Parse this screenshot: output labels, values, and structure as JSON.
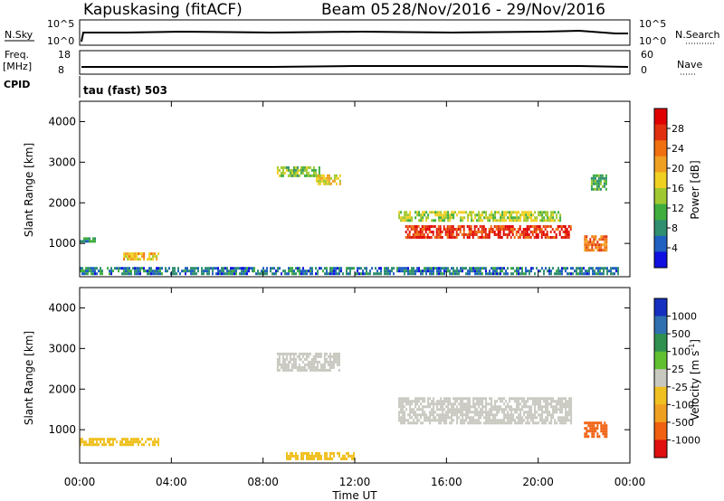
{
  "header": {
    "station": "Kapuskasing (fitACF)",
    "beam": "Beam 05",
    "dates": "28/Nov/2016 - 29/Nov/2016",
    "program": "tau (fast) 503"
  },
  "mini_panels": {
    "nsky": {
      "left_label": "N.Sky",
      "right_label": "N.Search",
      "left_top": "10^5",
      "left_bottom": "10^0",
      "right_top": "10^5",
      "right_bottom": "10^0"
    },
    "freq": {
      "left_label_line1": "Freq.",
      "left_label_line2": "[MHz]",
      "left_top": "18",
      "left_bottom": "8",
      "right_label": "Nave",
      "right_top": "60",
      "right_bottom": "0"
    },
    "cpid_label": "CPID"
  },
  "axes": {
    "ylabel": "Slant Range [km]",
    "xlabel": "Time UT",
    "y_ticks": [
      "4000",
      "3000",
      "2000",
      "1000"
    ],
    "x_ticks": [
      "00:00",
      "04:00",
      "08:00",
      "12:00",
      "16:00",
      "20:00",
      "00:00"
    ]
  },
  "colorbars": {
    "power": {
      "label": "Power [dB]",
      "ticks": [
        "28",
        "24",
        "20",
        "16",
        "12",
        "8",
        "4"
      ],
      "colors": [
        "#1010e0",
        "#2060c0",
        "#2f8f70",
        "#3fae3f",
        "#a0c830",
        "#f0d020",
        "#f0a020",
        "#f07010",
        "#e03010",
        "#e00000"
      ]
    },
    "velocity": {
      "label": "Velocity [m s^-1]",
      "ticks": [
        "1000",
        "500",
        "100",
        "25",
        "-25",
        "-100",
        "-500",
        "-1000"
      ],
      "colors": [
        "#1530c0",
        "#3070b0",
        "#2f9050",
        "#60c030",
        "#c8c8c0",
        "#f0c020",
        "#f0a020",
        "#f06010",
        "#e01010"
      ]
    }
  },
  "chart_data": {
    "type": "heatmap",
    "x_range_hours": [
      0,
      24
    ],
    "y_range_km": [
      180,
      4500
    ],
    "power_regions": [
      {
        "t": [
          0.0,
          0.7
        ],
        "r": [
          1000,
          1150
        ],
        "dB": 8
      },
      {
        "t": [
          1.9,
          3.5
        ],
        "r": [
          560,
          780
        ],
        "dB": 18
      },
      {
        "t": [
          0.0,
          23.5
        ],
        "r": [
          250,
          420
        ],
        "dB": 6
      },
      {
        "t": [
          8.6,
          10.5
        ],
        "r": [
          2600,
          2900
        ],
        "dB": 12
      },
      {
        "t": [
          10.3,
          11.4
        ],
        "r": [
          2450,
          2700
        ],
        "dB": 16
      },
      {
        "t": [
          13.9,
          21.0
        ],
        "r": [
          1500,
          1800
        ],
        "dB": 14
      },
      {
        "t": [
          14.2,
          21.5
        ],
        "r": [
          1100,
          1450
        ],
        "dB": 26
      },
      {
        "t": [
          22.0,
          23.0
        ],
        "r": [
          800,
          1200
        ],
        "dB": 22
      },
      {
        "t": [
          22.3,
          23.0
        ],
        "r": [
          2300,
          2700
        ],
        "dB": 10
      }
    ],
    "velocity_regions": [
      {
        "t": [
          0.0,
          3.5
        ],
        "r": [
          600,
          800
        ],
        "v": -100
      },
      {
        "t": [
          8.6,
          11.4
        ],
        "r": [
          2450,
          2900
        ],
        "v": 0
      },
      {
        "t": [
          13.9,
          21.5
        ],
        "r": [
          1100,
          1800
        ],
        "v": 0
      },
      {
        "t": [
          9.0,
          12.0
        ],
        "r": [
          250,
          450
        ],
        "v": -100
      },
      {
        "t": [
          22.0,
          23.0
        ],
        "r": [
          800,
          1200
        ],
        "v": -500
      }
    ]
  }
}
